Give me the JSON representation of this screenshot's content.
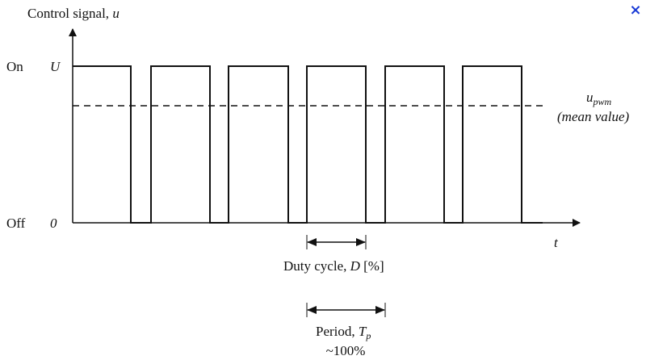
{
  "close_button": "×",
  "y_axis": {
    "label": "Control signal,",
    "symbol": "u"
  },
  "levels": {
    "on": {
      "name": "On",
      "symbol": "U"
    },
    "off": {
      "name": "Off",
      "symbol": "0"
    }
  },
  "mean_line": {
    "symbol": "u",
    "subscript": "pwm",
    "note": "(mean value)"
  },
  "x_axis": {
    "symbol": "t"
  },
  "duty_cycle": {
    "label": "Duty cycle,",
    "symbol": "D",
    "unit": "[%]"
  },
  "period": {
    "label": "Period,",
    "symbol": "T",
    "subscript": "p",
    "value": "~100%"
  }
}
